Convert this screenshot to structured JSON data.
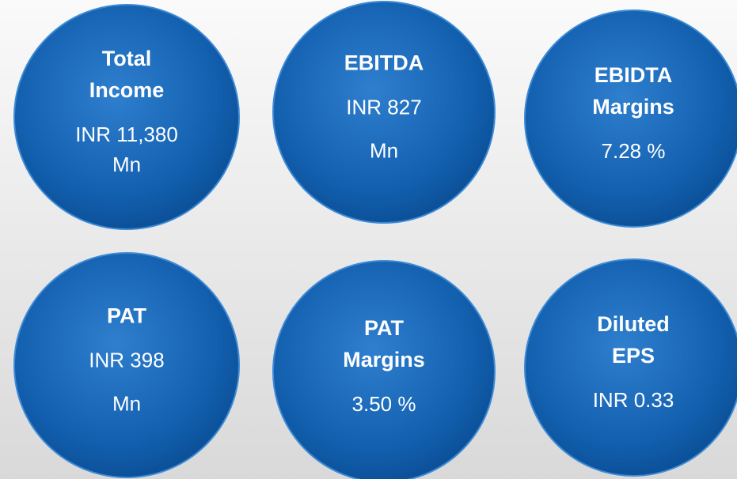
{
  "kpis": [
    {
      "title": [
        "Total",
        "Income"
      ],
      "value": [
        "INR 11,380",
        "Mn"
      ]
    },
    {
      "title": [
        "EBITDA"
      ],
      "value": [
        "INR 827",
        "Mn"
      ]
    },
    {
      "title": [
        "EBIDTA",
        "Margins"
      ],
      "value": [
        "7.28 %"
      ]
    },
    {
      "title": [
        "PAT"
      ],
      "value": [
        "INR 398",
        "Mn"
      ]
    },
    {
      "title": [
        "PAT",
        "Margins"
      ],
      "value": [
        "3.50 %"
      ]
    },
    {
      "title": [
        "Diluted",
        "EPS"
      ],
      "value": [
        "INR 0.33"
      ]
    }
  ]
}
